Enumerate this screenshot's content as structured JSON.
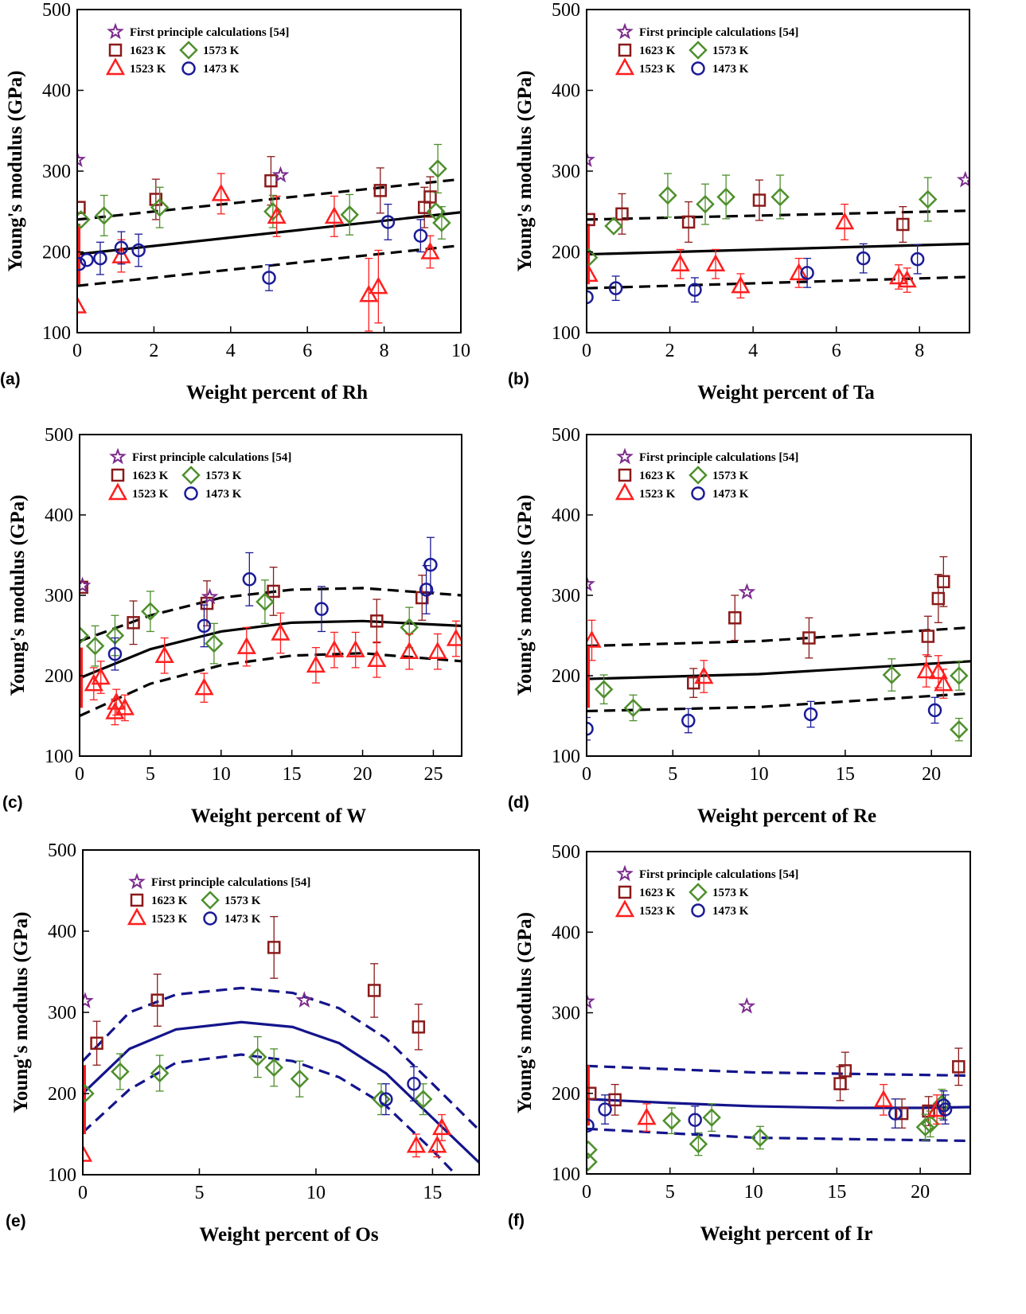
{
  "legend": {
    "star": "First principle calculations [54]",
    "s1623": "1623 K",
    "s1573": "1573 K",
    "s1523": "1523 K",
    "s1473": "1473 K"
  },
  "colors": {
    "s1623": "#8b1a1a",
    "s1573": "#4e8f2c",
    "s1523": "#ff1e1e",
    "s1473": "#1a1a96",
    "star": "#7b2a8c",
    "fit_black": "#000000",
    "fit_navy": "#14148c",
    "range": "#ff1e1e"
  },
  "chart_data": [
    {
      "panel_label": "(a)",
      "type": "scatter",
      "xlabel": "Weight percent of Rh",
      "ylabel": "Young's modulus (GPa)",
      "xlim": [
        0,
        10
      ],
      "ylim": [
        100,
        500
      ],
      "xticks": [
        "0",
        "2",
        "4",
        "6",
        "8",
        "10"
      ],
      "yticks": [
        "100",
        "200",
        "300",
        "400",
        "500"
      ],
      "fit_color": "fit_black",
      "range": [
        160,
        235
      ],
      "star": [
        [
          0,
          314
        ],
        [
          5.3,
          295
        ]
      ],
      "s1623": [
        [
          0.05,
          255,
          0
        ],
        [
          2.05,
          265,
          25
        ],
        [
          5.05,
          288,
          30
        ],
        [
          7.9,
          276,
          28
        ],
        [
          9.05,
          255,
          25
        ],
        [
          9.2,
          268,
          25
        ]
      ],
      "s1573": [
        [
          0.1,
          240,
          0
        ],
        [
          0.7,
          245,
          25
        ],
        [
          2.15,
          255,
          25
        ],
        [
          5.1,
          250,
          20
        ],
        [
          7.1,
          246,
          25
        ],
        [
          9.4,
          303,
          30
        ],
        [
          9.35,
          250,
          0
        ],
        [
          9.5,
          236,
          20
        ]
      ],
      "s1523": [
        [
          0,
          133,
          0
        ],
        [
          1.15,
          195,
          20
        ],
        [
          3.75,
          272,
          25
        ],
        [
          5.2,
          244,
          25
        ],
        [
          6.7,
          244,
          25
        ],
        [
          7.6,
          147,
          45
        ],
        [
          7.85,
          157,
          45
        ],
        [
          9.2,
          200,
          20
        ]
      ],
      "s1473": [
        [
          0.05,
          185,
          0
        ],
        [
          0.25,
          190,
          0
        ],
        [
          0.6,
          192,
          20
        ],
        [
          1.15,
          205,
          20
        ],
        [
          1.6,
          202,
          20
        ],
        [
          5.0,
          168,
          16
        ],
        [
          8.1,
          237,
          22
        ],
        [
          8.95,
          220,
          20
        ]
      ],
      "fit": [
        [
          0,
          197
        ],
        [
          10,
          249
        ]
      ],
      "upper": [
        [
          0,
          240
        ],
        [
          10,
          290
        ]
      ],
      "lower": [
        [
          0,
          158
        ],
        [
          10,
          208
        ]
      ]
    },
    {
      "panel_label": "(b)",
      "type": "scatter",
      "xlabel": "Weight percent of Ta",
      "ylabel": "Young's modulus (GPa)",
      "xlim": [
        0,
        9.2
      ],
      "ylim": [
        100,
        500
      ],
      "xticks": [
        "0",
        "2",
        "4",
        "6",
        "8"
      ],
      "yticks": [
        "100",
        "200",
        "300",
        "400",
        "500"
      ],
      "fit_color": "fit_black",
      "range": [
        160,
        235
      ],
      "star": [
        [
          0,
          314
        ],
        [
          9.1,
          289
        ]
      ],
      "s1623": [
        [
          0.05,
          240,
          0
        ],
        [
          0.85,
          247,
          25
        ],
        [
          2.45,
          237,
          25
        ],
        [
          4.15,
          264,
          25
        ],
        [
          7.6,
          234,
          22
        ]
      ],
      "s1573": [
        [
          0.05,
          193,
          0
        ],
        [
          0.65,
          232,
          0
        ],
        [
          1.95,
          270,
          27
        ],
        [
          2.85,
          259,
          25
        ],
        [
          3.35,
          268,
          27
        ],
        [
          4.65,
          268,
          27
        ],
        [
          8.2,
          265,
          27
        ]
      ],
      "s1523": [
        [
          0.05,
          172,
          0
        ],
        [
          2.25,
          185,
          18
        ],
        [
          3.1,
          185,
          18
        ],
        [
          3.7,
          158,
          15
        ],
        [
          5.1,
          174,
          18
        ],
        [
          6.2,
          237,
          22
        ],
        [
          7.5,
          169,
          15
        ],
        [
          7.7,
          165,
          15
        ]
      ],
      "s1473": [
        [
          0,
          144,
          0
        ],
        [
          0.7,
          155,
          15
        ],
        [
          2.6,
          153,
          15
        ],
        [
          5.3,
          174,
          18
        ],
        [
          6.65,
          192,
          18
        ],
        [
          7.95,
          191,
          18
        ]
      ],
      "fit": [
        [
          0,
          197
        ],
        [
          9.2,
          210
        ]
      ],
      "upper": [
        [
          0,
          240
        ],
        [
          9.2,
          251
        ]
      ],
      "lower": [
        [
          0,
          155
        ],
        [
          9.2,
          169
        ]
      ]
    },
    {
      "panel_label": "(c)",
      "type": "scatter",
      "xlabel": "Weight percent of W",
      "ylabel": "Young's modulus (GPa)",
      "xlim": [
        0,
        27
      ],
      "ylim": [
        100,
        500
      ],
      "xticks": [
        "0",
        "5",
        "10",
        "15",
        "20",
        "25"
      ],
      "yticks": [
        "100",
        "200",
        "300",
        "400",
        "500"
      ],
      "fit_color": "fit_black",
      "range": [
        160,
        235
      ],
      "star": [
        [
          0.2,
          312
        ],
        [
          9.2,
          298
        ]
      ],
      "s1623": [
        [
          0.15,
          310,
          0
        ],
        [
          3.8,
          266,
          27
        ],
        [
          9,
          290,
          28
        ],
        [
          13.7,
          305,
          30
        ],
        [
          21,
          268,
          27
        ],
        [
          24.2,
          297,
          28
        ]
      ],
      "s1573": [
        [
          0,
          250,
          0
        ],
        [
          1.1,
          237,
          25
        ],
        [
          2.5,
          250,
          25
        ],
        [
          5,
          280,
          25
        ],
        [
          9.5,
          240,
          25
        ],
        [
          13.1,
          292,
          27
        ],
        [
          23.3,
          260,
          25
        ]
      ],
      "s1523": [
        [
          1,
          190,
          20
        ],
        [
          1.5,
          198,
          20
        ],
        [
          2.5,
          155,
          16
        ],
        [
          2.6,
          167,
          16
        ],
        [
          3.2,
          160,
          16
        ],
        [
          6,
          225,
          22
        ],
        [
          8.8,
          185,
          18
        ],
        [
          11.8,
          236,
          24
        ],
        [
          14.2,
          253,
          25
        ],
        [
          16.7,
          213,
          22
        ],
        [
          18,
          232,
          22
        ],
        [
          19.5,
          232,
          22
        ],
        [
          21,
          220,
          22
        ],
        [
          23.3,
          230,
          22
        ],
        [
          25.3,
          230,
          22
        ],
        [
          26.6,
          246,
          22
        ]
      ],
      "s1473": [
        [
          2.5,
          227,
          20
        ],
        [
          8.8,
          262,
          26
        ],
        [
          12,
          320,
          33
        ],
        [
          17.1,
          283,
          28
        ],
        [
          24.5,
          307,
          30
        ],
        [
          24.8,
          338,
          34
        ]
      ],
      "fit": [
        [
          0,
          197
        ],
        [
          5,
          233
        ],
        [
          10,
          255
        ],
        [
          15,
          266
        ],
        [
          20,
          268
        ],
        [
          27,
          262
        ]
      ],
      "upper": [
        [
          0,
          243
        ],
        [
          5,
          275
        ],
        [
          10,
          297
        ],
        [
          15,
          307
        ],
        [
          20,
          309
        ],
        [
          27,
          300
        ]
      ],
      "lower": [
        [
          0,
          150
        ],
        [
          5,
          190
        ],
        [
          10,
          213
        ],
        [
          15,
          225
        ],
        [
          20,
          228
        ],
        [
          27,
          218
        ]
      ]
    },
    {
      "panel_label": "(d)",
      "type": "scatter",
      "xlabel": "Weight percent of Re",
      "ylabel": "Young's modulus (GPa)",
      "xlim": [
        0,
        22.3
      ],
      "ylim": [
        100,
        500
      ],
      "xticks": [
        "0",
        "5",
        "10",
        "15",
        "20"
      ],
      "yticks": [
        "100",
        "200",
        "300",
        "400",
        "500"
      ],
      "fit_color": "fit_black",
      "range": [
        160,
        235
      ],
      "star": [
        [
          0,
          314
        ],
        [
          9.3,
          304
        ]
      ],
      "s1623": [
        [
          6.2,
          191,
          18
        ],
        [
          8.6,
          272,
          28
        ],
        [
          12.9,
          247,
          25
        ],
        [
          19.8,
          249,
          25
        ],
        [
          20.4,
          296,
          30
        ],
        [
          20.7,
          317,
          31
        ]
      ],
      "s1573": [
        [
          1,
          183,
          18
        ],
        [
          2.7,
          160,
          16
        ],
        [
          17.7,
          201,
          20
        ],
        [
          21.6,
          200,
          18
        ],
        [
          21.6,
          133,
          14
        ]
      ],
      "s1523": [
        [
          0.3,
          244,
          25
        ],
        [
          6.8,
          199,
          20
        ],
        [
          19.7,
          206,
          20
        ],
        [
          20.4,
          205,
          20
        ],
        [
          20.7,
          190,
          18
        ]
      ],
      "s1473": [
        [
          0,
          134,
          14
        ],
        [
          5.9,
          144,
          15
        ],
        [
          13,
          152,
          16
        ],
        [
          20.2,
          157,
          16
        ]
      ],
      "fit": [
        [
          0,
          196
        ],
        [
          10,
          202
        ],
        [
          22.3,
          218
        ]
      ],
      "upper": [
        [
          0,
          237
        ],
        [
          10,
          243
        ],
        [
          22.3,
          260
        ]
      ],
      "lower": [
        [
          0,
          156
        ],
        [
          10,
          161
        ],
        [
          22.3,
          178
        ]
      ]
    },
    {
      "panel_label": "(e)",
      "type": "scatter",
      "xlabel": "Weight percent of Os",
      "ylabel": "Young's modulus (GPa)",
      "xlim": [
        0,
        17
      ],
      "ylim": [
        100,
        500
      ],
      "xticks": [
        "0",
        "5",
        "10",
        "15"
      ],
      "yticks": [
        "100",
        "200",
        "300",
        "400",
        "500"
      ],
      "fit_color": "fit_navy",
      "range": [
        150,
        235
      ],
      "star": [
        [
          0.1,
          314
        ],
        [
          9.5,
          315
        ]
      ],
      "s1623": [
        [
          0.6,
          262,
          27
        ],
        [
          3.2,
          315,
          32
        ],
        [
          8.2,
          380,
          38
        ],
        [
          12.5,
          327,
          33
        ],
        [
          14.4,
          282,
          28
        ]
      ],
      "s1573": [
        [
          0.1,
          200,
          0
        ],
        [
          1.6,
          227,
          22
        ],
        [
          3.3,
          225,
          22
        ],
        [
          7.5,
          245,
          25
        ],
        [
          8.2,
          232,
          23
        ],
        [
          9.3,
          218,
          22
        ],
        [
          12.8,
          193,
          19
        ],
        [
          14.6,
          193,
          19
        ]
      ],
      "s1523": [
        [
          0,
          125,
          0
        ],
        [
          14.3,
          136,
          14
        ],
        [
          15.2,
          136,
          14
        ],
        [
          15.4,
          158,
          16
        ]
      ],
      "s1473": [
        [
          13,
          193,
          19
        ],
        [
          14.2,
          212,
          21
        ]
      ],
      "fit": [
        [
          0,
          200
        ],
        [
          2,
          255
        ],
        [
          4,
          279
        ],
        [
          6.8,
          288
        ],
        [
          9,
          282
        ],
        [
          11,
          262
        ],
        [
          13,
          225
        ],
        [
          15,
          170
        ],
        [
          17,
          115
        ]
      ],
      "upper": [
        [
          0,
          240
        ],
        [
          2,
          300
        ],
        [
          4,
          322
        ],
        [
          6.8,
          330
        ],
        [
          9,
          324
        ],
        [
          11,
          305
        ],
        [
          13,
          268
        ],
        [
          15,
          212
        ],
        [
          17,
          155
        ]
      ],
      "lower": [
        [
          0,
          152
        ],
        [
          2,
          205
        ],
        [
          4,
          238
        ],
        [
          6.8,
          248
        ],
        [
          9,
          240
        ],
        [
          11,
          220
        ],
        [
          13,
          185
        ],
        [
          15,
          130
        ],
        [
          16,
          100
        ]
      ]
    },
    {
      "panel_label": "(f)",
      "type": "scatter",
      "xlabel": "Weight percent of Ir",
      "ylabel": "Young's modulus (GPa)",
      "xlim": [
        0,
        23
      ],
      "ylim": [
        100,
        500
      ],
      "xticks": [
        "0",
        "5",
        "10",
        "15",
        "20"
      ],
      "yticks": [
        "100",
        "200",
        "300",
        "400",
        "500"
      ],
      "fit_color": "fit_navy",
      "range": [
        160,
        235
      ],
      "star": [
        [
          0,
          314
        ],
        [
          9.6,
          308
        ]
      ],
      "s1623": [
        [
          0.2,
          200,
          0
        ],
        [
          1.7,
          192,
          19
        ],
        [
          15.2,
          212,
          21
        ],
        [
          15.5,
          228,
          23
        ],
        [
          18.9,
          175,
          18
        ],
        [
          20.5,
          178,
          18
        ],
        [
          22.3,
          233,
          23
        ]
      ],
      "s1573": [
        [
          0.1,
          130,
          0
        ],
        [
          0.1,
          115,
          0
        ],
        [
          5.1,
          166,
          16
        ],
        [
          6.7,
          137,
          14
        ],
        [
          7.5,
          170,
          17
        ],
        [
          10.4,
          145,
          14
        ],
        [
          20.3,
          158,
          16
        ],
        [
          20.6,
          162,
          16
        ],
        [
          21.3,
          187,
          18
        ]
      ],
      "s1523": [
        [
          3.6,
          170,
          17
        ],
        [
          17.8,
          192,
          19
        ],
        [
          21.0,
          180,
          18
        ]
      ],
      "s1473": [
        [
          0.05,
          160,
          0
        ],
        [
          1.1,
          180,
          18
        ],
        [
          6.5,
          167,
          17
        ],
        [
          18.5,
          175,
          18
        ],
        [
          21.4,
          185,
          18
        ],
        [
          21.5,
          180,
          18
        ]
      ],
      "fit": [
        [
          0,
          193
        ],
        [
          5,
          188
        ],
        [
          10,
          184
        ],
        [
          15,
          182
        ],
        [
          20,
          182
        ],
        [
          23,
          183
        ]
      ],
      "upper": [
        [
          0,
          234
        ],
        [
          10,
          226
        ],
        [
          23,
          222
        ]
      ],
      "lower": [
        [
          0,
          156
        ],
        [
          10,
          145
        ],
        [
          23,
          141
        ]
      ]
    }
  ]
}
